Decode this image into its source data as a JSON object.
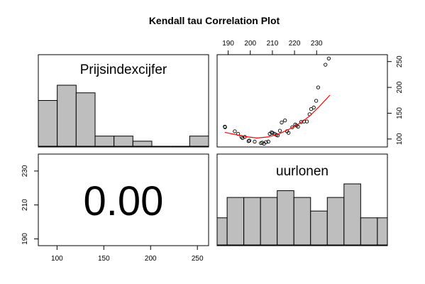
{
  "chart_data": {
    "type": "scatter",
    "title": "Kendall tau Correlation Plot",
    "variables": [
      "Prijsindexcijfer",
      "uurlonen"
    ],
    "panels": {
      "hist_x": {
        "type": "bar",
        "label": "Prijsindexcijfer",
        "bins": [
          80,
          100,
          120,
          140,
          160,
          180,
          200,
          220,
          240,
          260
        ],
        "counts": [
          9,
          12,
          10.5,
          2,
          2,
          1,
          0,
          0,
          2
        ],
        "xlim": [
          80,
          260
        ]
      },
      "scatter": {
        "type": "scatter",
        "xlim": [
          185,
          262
        ],
        "ylim": [
          86,
          262
        ],
        "x_ticks": [
          190,
          200,
          210,
          220,
          230
        ],
        "y_ticks": [
          100,
          150,
          200,
          250
        ],
        "points": [
          [
            188.5,
            124
          ],
          [
            188.6,
            123
          ],
          [
            193,
            115
          ],
          [
            194.5,
            110
          ],
          [
            196,
            104
          ],
          [
            196.5,
            102
          ],
          [
            197.5,
            104
          ],
          [
            199.2,
            96
          ],
          [
            199.6,
            97
          ],
          [
            202,
            95
          ],
          [
            204.8,
            92
          ],
          [
            205.4,
            93
          ],
          [
            206.2,
            91
          ],
          [
            207.1,
            94
          ],
          [
            208.2,
            95
          ],
          [
            208.8,
            110
          ],
          [
            209.6,
            113
          ],
          [
            210.1,
            112
          ],
          [
            211,
            110
          ],
          [
            211.8,
            108
          ],
          [
            212.4,
            107
          ],
          [
            213.4,
            116
          ],
          [
            214.2,
            132
          ],
          [
            215.7,
            136
          ],
          [
            216.6,
            115
          ],
          [
            217.3,
            112
          ],
          [
            219,
            123
          ],
          [
            220.3,
            128
          ],
          [
            220.9,
            126
          ],
          [
            221.6,
            124
          ],
          [
            223,
            133
          ],
          [
            224.3,
            134
          ],
          [
            225.6,
            134
          ],
          [
            226.8,
            148
          ],
          [
            227.5,
            158
          ],
          [
            228.7,
            161
          ],
          [
            229.8,
            174
          ],
          [
            230.7,
            200
          ],
          [
            234,
            244
          ],
          [
            235.5,
            256
          ]
        ],
        "smooth_x": [
          188.5,
          194,
          199,
          203,
          208,
          213,
          218,
          223,
          227,
          231,
          236
        ],
        "smooth_y": [
          113,
          108,
          104,
          102,
          104,
          110,
          120,
          132,
          145,
          162,
          185
        ],
        "smooth_color": "#ff0000"
      },
      "corr": {
        "value_text": "0.00",
        "xlim": [
          80,
          262
        ],
        "ylim": [
          186,
          240
        ],
        "x_ticks": [
          100,
          150,
          200,
          250
        ],
        "y_ticks": [
          190,
          210,
          230
        ]
      },
      "hist_y": {
        "type": "bar",
        "label": "uurlonen",
        "bins": [
          186,
          190,
          195,
          200,
          205,
          210,
          215,
          220,
          225,
          230,
          235,
          240
        ],
        "counts": [
          4,
          7,
          7,
          7,
          8,
          7,
          5,
          7,
          9,
          4,
          4
        ],
        "xlim": [
          187,
          238
        ]
      }
    },
    "bar_color": "#bebebe",
    "point_color": "#000000"
  }
}
